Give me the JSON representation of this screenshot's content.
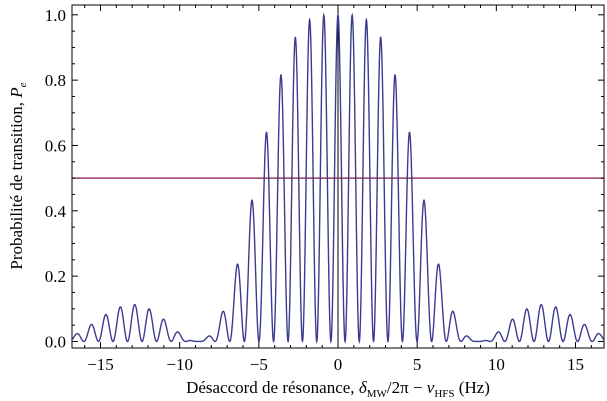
{
  "chart_data": {
    "type": "line",
    "title": "",
    "xlabel": {
      "prefix": "Désaccord de résonance, ",
      "delta": "δ",
      "delta_sub": "MW",
      "middle": "/2π − ",
      "nu": "ν",
      "nu_sub": "HFS",
      "suffix": " (Hz)"
    },
    "ylabel": {
      "prefix": "Probabilité de transition, ",
      "symbol": "P",
      "symbol_sub": "e"
    },
    "xlim": [
      -16.8,
      16.8
    ],
    "ylim": [
      -0.02,
      1.03
    ],
    "x_ticks": [
      -15,
      -10,
      -5,
      0,
      5,
      10,
      15
    ],
    "x_tick_labels": [
      "−15",
      "−10",
      "−5",
      "0",
      "5",
      "10",
      "15"
    ],
    "y_ticks": [
      0.0,
      0.2,
      0.4,
      0.6,
      0.8,
      1.0
    ],
    "y_tick_labels": [
      "0.0",
      "0.2",
      "0.4",
      "0.6",
      "0.8",
      "1.0"
    ],
    "grid": false,
    "series": [
      {
        "name": "",
        "color": "#3b3b91",
        "model": "ramsey_fringes",
        "fringe_period_hz": 1.02,
        "rabi_envelope_halfwidth_hz": 4.6,
        "peaks": [
          {
            "x": -13.3,
            "y": 0.04
          },
          {
            "x": -12.3,
            "y": 0.11
          },
          {
            "x": -11.2,
            "y": 0.11
          },
          {
            "x": -10.2,
            "y": 0.04
          },
          {
            "x": -7.1,
            "y": 0.04
          },
          {
            "x": -6.1,
            "y": 0.17
          },
          {
            "x": -5.1,
            "y": 0.4
          },
          {
            "x": -4.1,
            "y": 0.65
          },
          {
            "x": -3.1,
            "y": 0.86
          },
          {
            "x": -2.0,
            "y": 0.97
          },
          {
            "x": -1.0,
            "y": 1.0
          },
          {
            "x": 0,
            "y": 1.0
          },
          {
            "x": 1.0,
            "y": 1.0
          },
          {
            "x": 2.0,
            "y": 0.97
          },
          {
            "x": 3.1,
            "y": 0.86
          },
          {
            "x": 4.1,
            "y": 0.65
          },
          {
            "x": 5.1,
            "y": 0.4
          },
          {
            "x": 6.1,
            "y": 0.17
          },
          {
            "x": 7.1,
            "y": 0.04
          },
          {
            "x": 10.2,
            "y": 0.04
          },
          {
            "x": 11.2,
            "y": 0.11
          },
          {
            "x": 12.3,
            "y": 0.11
          },
          {
            "x": 13.3,
            "y": 0.04
          }
        ]
      },
      {
        "name": "",
        "color": "#9a3a6a",
        "type": "hline",
        "y": 0.5
      }
    ],
    "vline_at_x": 0
  }
}
